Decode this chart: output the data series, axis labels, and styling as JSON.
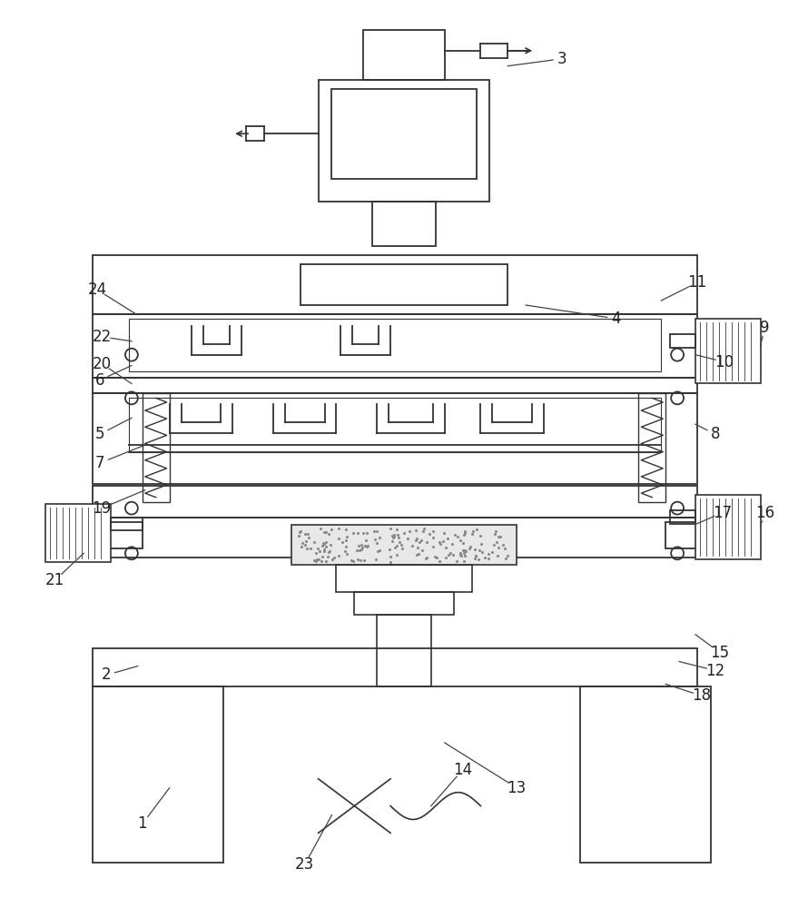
{
  "bg_color": "#ffffff",
  "line_color": "#333333",
  "lw": 1.3
}
